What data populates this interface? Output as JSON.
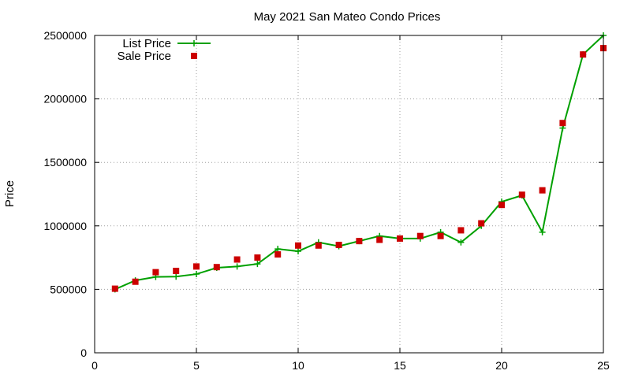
{
  "chart_data": {
    "type": "line",
    "title": "May 2021 San Mateo Condo Prices",
    "xlabel": "",
    "ylabel": "Price",
    "xlim": [
      0,
      25
    ],
    "ylim": [
      0,
      2500000
    ],
    "x_ticks": [
      "0",
      "5",
      "10",
      "15",
      "20",
      "25"
    ],
    "y_ticks": [
      "0",
      "500000",
      "1000000",
      "1500000",
      "2000000",
      "2500000"
    ],
    "grid": true,
    "legend_position": "top-left",
    "x": [
      1,
      2,
      3,
      4,
      5,
      6,
      7,
      8,
      9,
      10,
      11,
      12,
      13,
      14,
      15,
      16,
      17,
      18,
      19,
      20,
      21,
      22,
      23,
      24,
      25
    ],
    "series": [
      {
        "name": "List Price",
        "style": "line-with-plus",
        "color": "#00a000",
        "values": [
          500000,
          570000,
          598000,
          600000,
          620000,
          670000,
          680000,
          700000,
          818000,
          800000,
          870000,
          840000,
          880000,
          920000,
          900000,
          900000,
          950000,
          870000,
          1000000,
          1190000,
          1240000,
          950000,
          1770000,
          2350000,
          2500000
        ]
      },
      {
        "name": "Sale Price",
        "style": "square-points",
        "color": "#cc0000",
        "values": [
          505000,
          560000,
          635000,
          645000,
          680000,
          675000,
          735000,
          750000,
          775000,
          845000,
          845000,
          850000,
          880000,
          890000,
          900000,
          920000,
          920000,
          965000,
          1020000,
          1165000,
          1245000,
          1280000,
          1810000,
          2350000,
          2400000
        ]
      }
    ]
  }
}
